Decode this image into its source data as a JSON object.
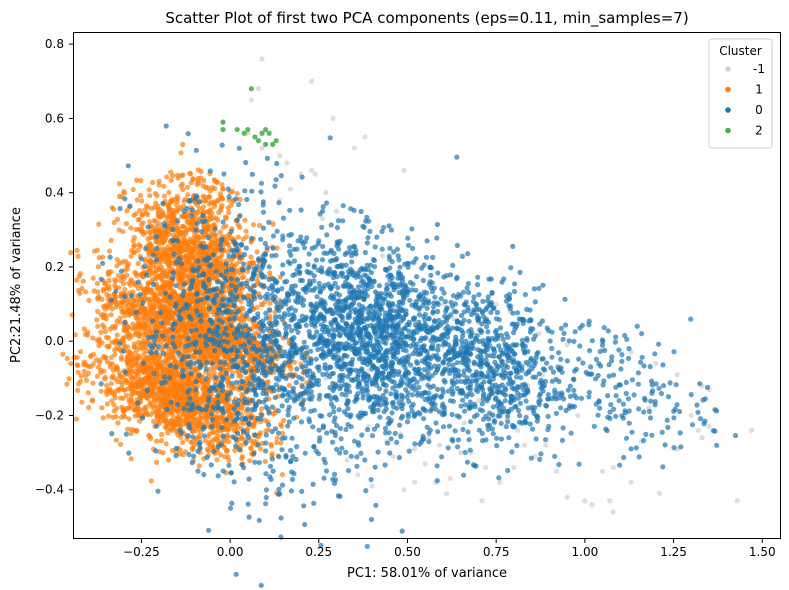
{
  "chart_data": {
    "type": "scatter",
    "title": "Scatter Plot of first two PCA components (eps=0.11, min_samples=7)",
    "xlabel": "PC1: 58.01% of variance",
    "ylabel": "PC2:21.48% of variance",
    "xlim": [
      -0.44,
      1.55
    ],
    "ylim": [
      -0.53,
      0.83
    ],
    "x_ticks": [
      -0.25,
      0.0,
      0.25,
      0.5,
      0.75,
      1.0,
      1.25,
      1.5
    ],
    "x_tick_labels": [
      "−0.25",
      "0.00",
      "0.25",
      "0.50",
      "0.75",
      "1.00",
      "1.25",
      "1.50"
    ],
    "y_ticks": [
      -0.4,
      -0.2,
      0.0,
      0.2,
      0.4,
      0.6,
      0.8
    ],
    "y_tick_labels": [
      "−0.4",
      "−0.2",
      "0.0",
      "0.2",
      "0.4",
      "0.6",
      "0.8"
    ],
    "grid": false,
    "legend": {
      "title": "Cluster",
      "placement": "top-right",
      "entries": [
        {
          "label": "-1",
          "color": "#d3d3d3"
        },
        {
          "label": "1",
          "color": "#ff7f0e"
        },
        {
          "label": "0",
          "color": "#1f77b4"
        },
        {
          "label": "2",
          "color": "#4daf4a"
        }
      ]
    },
    "series": [
      {
        "name": "-1",
        "color": "#d3d3d3",
        "points": [
          [
            0.09,
            0.76
          ],
          [
            0.23,
            0.7
          ],
          [
            0.08,
            0.68
          ],
          [
            0.06,
            0.65
          ],
          [
            0.29,
            0.6
          ],
          [
            0.38,
            0.55
          ],
          [
            0.35,
            0.52
          ],
          [
            0.14,
            0.5
          ],
          [
            0.16,
            0.48
          ],
          [
            0.23,
            0.46
          ],
          [
            0.2,
            0.45
          ],
          [
            0.24,
            0.45
          ],
          [
            0.49,
            0.46
          ],
          [
            0.09,
            0.52
          ],
          [
            0.05,
            0.56
          ],
          [
            0.14,
            0.38
          ],
          [
            0.3,
            0.35
          ],
          [
            0.17,
            0.41
          ],
          [
            0.27,
            0.4
          ],
          [
            0.26,
            0.33
          ],
          [
            0.43,
            0.23
          ],
          [
            0.52,
            0.21
          ],
          [
            0.6,
            0.1
          ],
          [
            0.63,
            0.06
          ],
          [
            0.7,
            0.05
          ],
          [
            0.79,
            0.08
          ],
          [
            0.87,
            0.02
          ],
          [
            0.95,
            -0.01
          ],
          [
            1.05,
            -0.02
          ],
          [
            1.13,
            -0.03
          ],
          [
            1.2,
            -0.06
          ],
          [
            1.26,
            -0.09
          ],
          [
            1.33,
            -0.12
          ],
          [
            1.35,
            -0.13
          ],
          [
            1.3,
            -0.2
          ],
          [
            1.32,
            -0.24
          ],
          [
            1.33,
            -0.26
          ],
          [
            1.35,
            -0.23
          ],
          [
            1.47,
            -0.24
          ],
          [
            1.43,
            -0.43
          ],
          [
            1.26,
            -0.29
          ],
          [
            1.16,
            -0.27
          ],
          [
            1.08,
            -0.34
          ],
          [
            1.05,
            -0.35
          ],
          [
            0.95,
            -0.42
          ],
          [
            1.0,
            -0.43
          ],
          [
            1.02,
            -0.44
          ],
          [
            1.07,
            -0.43
          ],
          [
            1.08,
            -0.46
          ],
          [
            1.13,
            -0.38
          ],
          [
            1.21,
            -0.41
          ],
          [
            0.83,
            -0.28
          ],
          [
            0.8,
            -0.34
          ],
          [
            0.76,
            -0.38
          ],
          [
            0.72,
            -0.34
          ],
          [
            0.71,
            -0.43
          ],
          [
            0.68,
            -0.3
          ],
          [
            0.65,
            -0.3
          ],
          [
            0.66,
            -0.22
          ],
          [
            0.61,
            -0.41
          ],
          [
            0.58,
            -0.38
          ],
          [
            0.55,
            -0.33
          ],
          [
            0.52,
            -0.29
          ],
          [
            0.48,
            -0.25
          ],
          [
            0.45,
            -0.22
          ],
          [
            0.44,
            -0.27
          ],
          [
            0.39,
            -0.23
          ],
          [
            0.33,
            -0.32
          ],
          [
            0.36,
            -0.36
          ],
          [
            0.4,
            -0.39
          ],
          [
            0.46,
            -0.31
          ],
          [
            0.49,
            -0.4
          ],
          [
            0.52,
            -0.38
          ],
          [
            0.59,
            -0.28
          ],
          [
            0.62,
            -0.37
          ],
          [
            0.74,
            -0.2
          ],
          [
            0.78,
            -0.21
          ],
          [
            0.81,
            -0.24
          ],
          [
            0.7,
            -0.16
          ],
          [
            0.65,
            -0.14
          ],
          [
            0.57,
            -0.18
          ],
          [
            0.44,
            -0.13
          ],
          [
            0.45,
            -0.06
          ],
          [
            0.39,
            -0.08
          ],
          [
            0.41,
            -0.1
          ],
          [
            0.92,
            -0.35
          ],
          [
            0.89,
            -0.28
          ],
          [
            0.86,
            -0.31
          ],
          [
            0.88,
            -0.09
          ],
          [
            0.83,
            -0.06
          ],
          [
            0.76,
            -0.09
          ],
          [
            0.75,
            0.1
          ],
          [
            0.84,
            -0.12
          ],
          [
            0.98,
            -0.2
          ],
          [
            1.18,
            -0.18
          ],
          [
            0.37,
            -0.2
          ],
          [
            0.56,
            -0.26
          ],
          [
            0.27,
            -0.1
          ],
          [
            0.3,
            -0.07
          ],
          [
            0.12,
            0.32
          ]
        ]
      },
      {
        "name": "2",
        "color": "#4daf4a",
        "points": [
          [
            -0.02,
            0.59
          ],
          [
            -0.02,
            0.57
          ],
          [
            0.02,
            0.57
          ],
          [
            0.04,
            0.56
          ],
          [
            0.06,
            0.68
          ],
          [
            0.09,
            0.56
          ],
          [
            0.1,
            0.57
          ],
          [
            0.11,
            0.56
          ],
          [
            0.07,
            0.55
          ],
          [
            0.08,
            0.54
          ],
          [
            0.1,
            0.53
          ],
          [
            0.12,
            0.53
          ],
          [
            0.13,
            0.54
          ],
          [
            0.05,
            0.57
          ]
        ]
      }
    ],
    "dense_regions": [
      {
        "series": "0",
        "color": "#1f77b4",
        "description_points": [
          {
            "x_range": [
              -0.2,
              0.35
            ],
            "y_range": [
              -0.32,
              0.28
            ],
            "count": 1100
          },
          {
            "x_range": [
              0.2,
              0.6
            ],
            "y_range": [
              -0.18,
              0.22
            ],
            "count": 1300
          },
          {
            "x_range": [
              0.55,
              0.9
            ],
            "y_range": [
              -0.25,
              0.12
            ],
            "count": 700
          },
          {
            "x_range": [
              0.85,
              1.3
            ],
            "y_range": [
              -0.25,
              0.02
            ],
            "count": 200
          }
        ]
      },
      {
        "series": "1",
        "color": "#ff7f0e",
        "description_points": [
          {
            "x_range": [
              -0.35,
              0.05
            ],
            "y_range": [
              -0.25,
              -0.05
            ],
            "count": 1400
          },
          {
            "x_range": [
              -0.32,
              0.1
            ],
            "y_range": [
              -0.05,
              0.12
            ],
            "count": 1400
          },
          {
            "x_range": [
              -0.25,
              0.05
            ],
            "y_range": [
              0.08,
              0.35
            ],
            "count": 1200
          },
          {
            "x_range": [
              -0.15,
              0.0
            ],
            "y_range": [
              0.35,
              0.46
            ],
            "count": 60
          }
        ]
      }
    ]
  }
}
